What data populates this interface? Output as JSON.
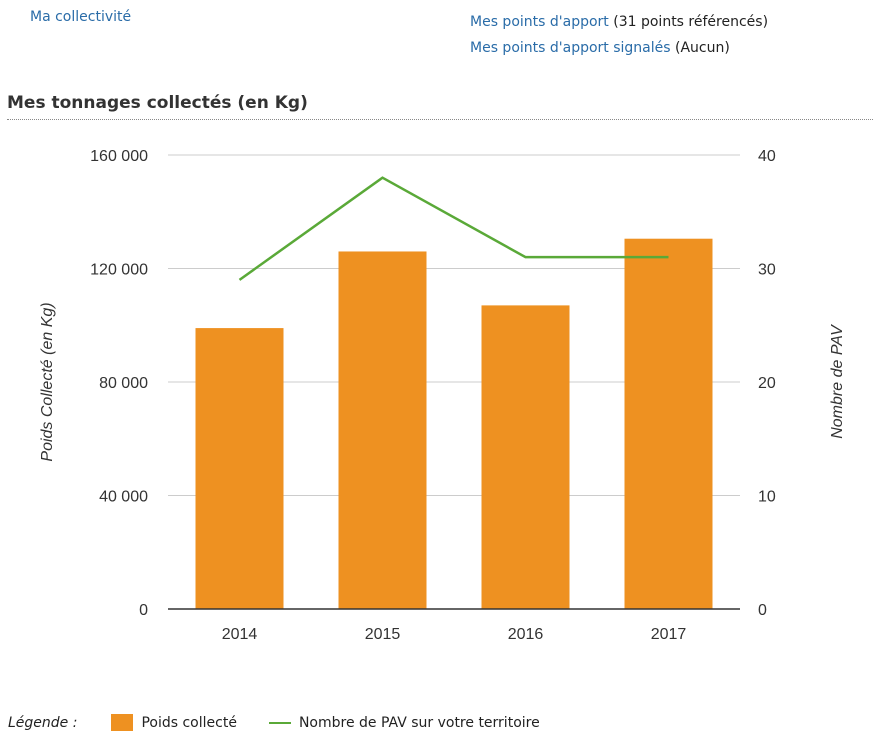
{
  "nav": {
    "collectivite": "Ma collectivité",
    "points_apport": "Mes points d'apport",
    "points_apport_count": "(31 points référencés)",
    "points_signales": "Mes points d'apport signalés",
    "points_signales_count": "(Aucun)"
  },
  "section_title": "Mes tonnages collectés (en Kg)",
  "legend": {
    "label": "Légende :",
    "bar_label": "Poids collecté",
    "line_label": "Nombre de PAV sur votre territoire"
  },
  "colors": {
    "bar": "#ee9121",
    "line": "#5aa938",
    "link": "#2a6ca8",
    "grid": "#cccccc"
  },
  "chart_data": {
    "type": "bar",
    "categories": [
      "2014",
      "2015",
      "2016",
      "2017"
    ],
    "series": [
      {
        "name": "Poids collecté",
        "type": "bar",
        "axis": "left",
        "values": [
          99000,
          126000,
          107000,
          130500
        ]
      },
      {
        "name": "Nombre de PAV sur votre territoire",
        "type": "line",
        "axis": "right",
        "values": [
          29,
          38,
          31,
          31
        ]
      }
    ],
    "ylabel": "Poids Collecté (en Kg)",
    "y2label": "Nombre de PAV",
    "ylim": [
      0,
      160000
    ],
    "y2lim": [
      0,
      40
    ],
    "yticks": [
      "0",
      "40 000",
      "80 000",
      "120 000",
      "160 000"
    ],
    "y2ticks": [
      "0",
      "10",
      "20",
      "30",
      "40"
    ],
    "grid": true,
    "legend_position": "bottom-left"
  }
}
